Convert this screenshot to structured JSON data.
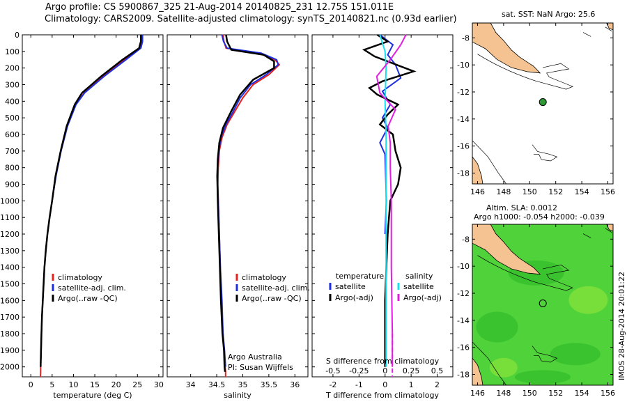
{
  "header": {
    "line1": "Argo profile: CS 5900867_325 21-Aug-2014 20140825_231 12.75S 151.011E",
    "line2": "Climatology: CARS2009. Satellite-adjusted climatology: synTS_20140821.nc (0.93d earlier)"
  },
  "colors": {
    "clim": "#e8221e",
    "sat": "#1c2ee0",
    "argo": "#000000",
    "cyan": "#19e0f0",
    "magenta": "#e01ee0",
    "land": "#f4c391",
    "sea_green": "#4fd23a"
  },
  "depth_ticks": [
    "0",
    "100",
    "200",
    "300",
    "400",
    "500",
    "600",
    "700",
    "800",
    "900",
    "1000",
    "1100",
    "1200",
    "1300",
    "1400",
    "1500",
    "1600",
    "1700",
    "1800",
    "1900",
    "2000"
  ],
  "chart_data": [
    {
      "type": "line",
      "name": "temperature",
      "xlabel": "temperature (deg C)",
      "ylabel": "depth",
      "xlim": [
        -2,
        31
      ],
      "ylim": [
        2060,
        0
      ],
      "xticks": [
        "0",
        "5",
        "10",
        "15",
        "20",
        "25",
        "30"
      ],
      "legend": [
        "climatology",
        "satellite-adj. clim.",
        "Argo(..raw -QC)"
      ],
      "series": [
        {
          "name": "climatology",
          "color": "clim",
          "x": [
            26.0,
            26.0,
            25.6,
            22.0,
            17.0,
            12.5,
            10.5,
            8.5,
            7.0,
            5.8,
            5.0,
            4.4,
            3.9,
            3.5,
            3.2,
            3.0,
            2.8,
            2.6,
            2.5,
            2.4,
            2.3,
            2.3,
            2.25
          ],
          "depth": [
            0,
            40,
            80,
            150,
            250,
            350,
            420,
            550,
            700,
            850,
            1000,
            1100,
            1200,
            1300,
            1400,
            1500,
            1600,
            1700,
            1800,
            1900,
            2000,
            2030,
            2060
          ]
        },
        {
          "name": "satellite",
          "color": "sat",
          "x": [
            26.2,
            26.2,
            25.8,
            22.3,
            17.2,
            12.6,
            10.6,
            8.6,
            7.1,
            5.9,
            5.0,
            4.4,
            3.9,
            3.5,
            3.2,
            3.0,
            2.8,
            2.6,
            2.5,
            2.4,
            2.3
          ],
          "depth": [
            0,
            40,
            80,
            150,
            250,
            350,
            420,
            550,
            700,
            850,
            1000,
            1100,
            1200,
            1300,
            1400,
            1500,
            1600,
            1700,
            1800,
            1900,
            2000
          ]
        },
        {
          "name": "argo",
          "color": "argo",
          "x": [
            25.8,
            25.8,
            25.4,
            21.5,
            16.5,
            12.0,
            10.3,
            8.4,
            7.0,
            5.8,
            5.0,
            4.4,
            3.9,
            3.5,
            3.2,
            3.0,
            2.8,
            2.6,
            2.5,
            2.4,
            2.3
          ],
          "depth": [
            0,
            40,
            80,
            150,
            250,
            350,
            420,
            550,
            700,
            850,
            1000,
            1100,
            1200,
            1300,
            1400,
            1500,
            1600,
            1700,
            1800,
            1900,
            2000
          ]
        }
      ]
    },
    {
      "type": "line",
      "name": "salinity",
      "xlabel": "salinity",
      "ylabel": "depth",
      "xlim": [
        33.55,
        36.25
      ],
      "ylim": [
        2060,
        0
      ],
      "xticks": [
        "34",
        "34.5",
        "35",
        "35.5",
        "36"
      ],
      "legend": [
        "climatology",
        "satellite-adj. clim.",
        "Argo(..raw -QC)"
      ],
      "series": [
        {
          "name": "climatology",
          "color": "clim",
          "x": [
            34.62,
            34.64,
            34.68,
            35.3,
            35.62,
            35.7,
            35.5,
            35.2,
            35.0,
            34.85,
            34.7,
            34.6,
            34.55,
            34.53,
            34.52,
            34.53,
            34.55,
            34.57,
            34.59,
            34.62,
            34.64,
            34.66,
            34.67,
            34.67
          ],
          "depth": [
            0,
            40,
            80,
            110,
            150,
            180,
            240,
            300,
            380,
            460,
            540,
            620,
            700,
            800,
            900,
            1000,
            1200,
            1400,
            1600,
            1800,
            1900,
            2000,
            2030,
            2060
          ]
        },
        {
          "name": "satellite",
          "color": "sat",
          "x": [
            34.6,
            34.63,
            34.7,
            35.35,
            35.65,
            35.68,
            35.45,
            35.15,
            34.95,
            34.82,
            34.68,
            34.58,
            34.54,
            34.52,
            34.52,
            34.53,
            34.55,
            34.57,
            34.6,
            34.62,
            34.65,
            34.67
          ],
          "depth": [
            0,
            40,
            80,
            110,
            150,
            180,
            240,
            300,
            380,
            460,
            540,
            620,
            700,
            800,
            900,
            1000,
            1200,
            1400,
            1600,
            1800,
            1900,
            2000
          ]
        },
        {
          "name": "argo",
          "color": "argo",
          "x": [
            34.68,
            34.7,
            34.78,
            35.4,
            35.6,
            35.6,
            35.2,
            34.95,
            34.78,
            34.62,
            34.55,
            34.52,
            34.51,
            34.52,
            34.54,
            34.56,
            34.58,
            34.61,
            34.64,
            34.65,
            34.66
          ],
          "depth": [
            0,
            40,
            90,
            120,
            160,
            200,
            270,
            360,
            460,
            560,
            650,
            750,
            850,
            1000,
            1200,
            1400,
            1600,
            1800,
            1900,
            2000,
            2030
          ]
        }
      ],
      "annotation_line1": "Argo Australia",
      "annotation_line2": "PI: Susan Wijffels"
    },
    {
      "type": "line",
      "name": "difference",
      "xlabel_bottom": "T difference from climatology",
      "xlabel_top": "S difference from climatology",
      "xlim": [
        -2.8,
        2.6
      ],
      "ylim": [
        2060,
        0
      ],
      "xticks": [
        "-2",
        "-1",
        "0",
        "1",
        "2"
      ],
      "sticks": [
        "-0.5",
        "-0.25",
        "0",
        "0.25",
        "0.5"
      ],
      "legend_temperature": {
        "title": "temperature",
        "items": [
          "satellite",
          "Argo(-adj)"
        ]
      },
      "legend_salinity": {
        "title": "salinity",
        "items": [
          "satellite",
          "Argo(-adj)"
        ]
      },
      "series": [
        {
          "name": "temperature-satellite",
          "color": "sat",
          "x": [
            -0.2,
            0.3,
            0.1,
            0.4,
            0.6,
            -0.1,
            0.2,
            -0.1,
            0.1,
            -0.2,
            0.0,
            0.05,
            0.0
          ],
          "depth": [
            0,
            60,
            120,
            180,
            260,
            340,
            420,
            500,
            560,
            650,
            720,
            1000,
            1200
          ]
        },
        {
          "name": "temperature-argo",
          "color": "argo",
          "x": [
            -0.3,
            0.1,
            -0.8,
            -0.4,
            1.1,
            -0.1,
            -0.6,
            -0.3,
            0.5,
            0.1,
            -0.2,
            0.3,
            0.4,
            0.6,
            0.5,
            0.2,
            0.1,
            0.05,
            0.0,
            0.0,
            0.0
          ],
          "depth": [
            0,
            40,
            90,
            130,
            220,
            280,
            320,
            360,
            420,
            480,
            540,
            600,
            700,
            800,
            900,
            1000,
            1200,
            1400,
            1600,
            1800,
            2000
          ]
        },
        {
          "name": "salinity-satellite",
          "color": "cyan",
          "x": [
            -0.05,
            0.0,
            0.01,
            0.0,
            0.01,
            0.01,
            0.01,
            0.01,
            0.01
          ],
          "depth": [
            0,
            100,
            200,
            400,
            600,
            800,
            1200,
            1600,
            2000
          ]
        },
        {
          "name": "salinity-argo",
          "color": "magenta",
          "x": [
            0.2,
            0.15,
            0.05,
            -0.08,
            -0.05,
            0.1,
            0.03,
            0.05,
            0.05,
            0.06,
            0.06,
            0.07,
            0.07
          ],
          "depth": [
            0,
            60,
            150,
            250,
            350,
            450,
            550,
            650,
            800,
            1000,
            1400,
            1800,
            2000
          ]
        }
      ]
    }
  ],
  "map_sst": {
    "title": "sat. SST: NaN Argo: 25.6",
    "xticks": [
      "146",
      "148",
      "150",
      "152",
      "154",
      "156"
    ],
    "yticks": [
      "-8",
      "-10",
      "-12",
      "-14",
      "-16",
      "-18"
    ],
    "xlim": [
      145.6,
      156.4
    ],
    "ylim": [
      -18.8,
      -6.9
    ],
    "argo_position": {
      "lon": 151.011,
      "lat": -12.75
    }
  },
  "map_sla": {
    "title_line1": "Altim. SLA: 0.0012",
    "title_line2": "Argo h1000: -0.054 h2000: -0.039",
    "xticks": [
      "146",
      "148",
      "150",
      "152",
      "154",
      "156"
    ],
    "yticks": [
      "-8",
      "-10",
      "-12",
      "-14",
      "-16",
      "-18"
    ],
    "xlim": [
      145.6,
      156.4
    ],
    "ylim": [
      -18.8,
      -6.9
    ],
    "argo_position": {
      "lon": 151.011,
      "lat": -12.75
    }
  },
  "timestamp": "IMOS 28-Aug-2014 20:01:22"
}
